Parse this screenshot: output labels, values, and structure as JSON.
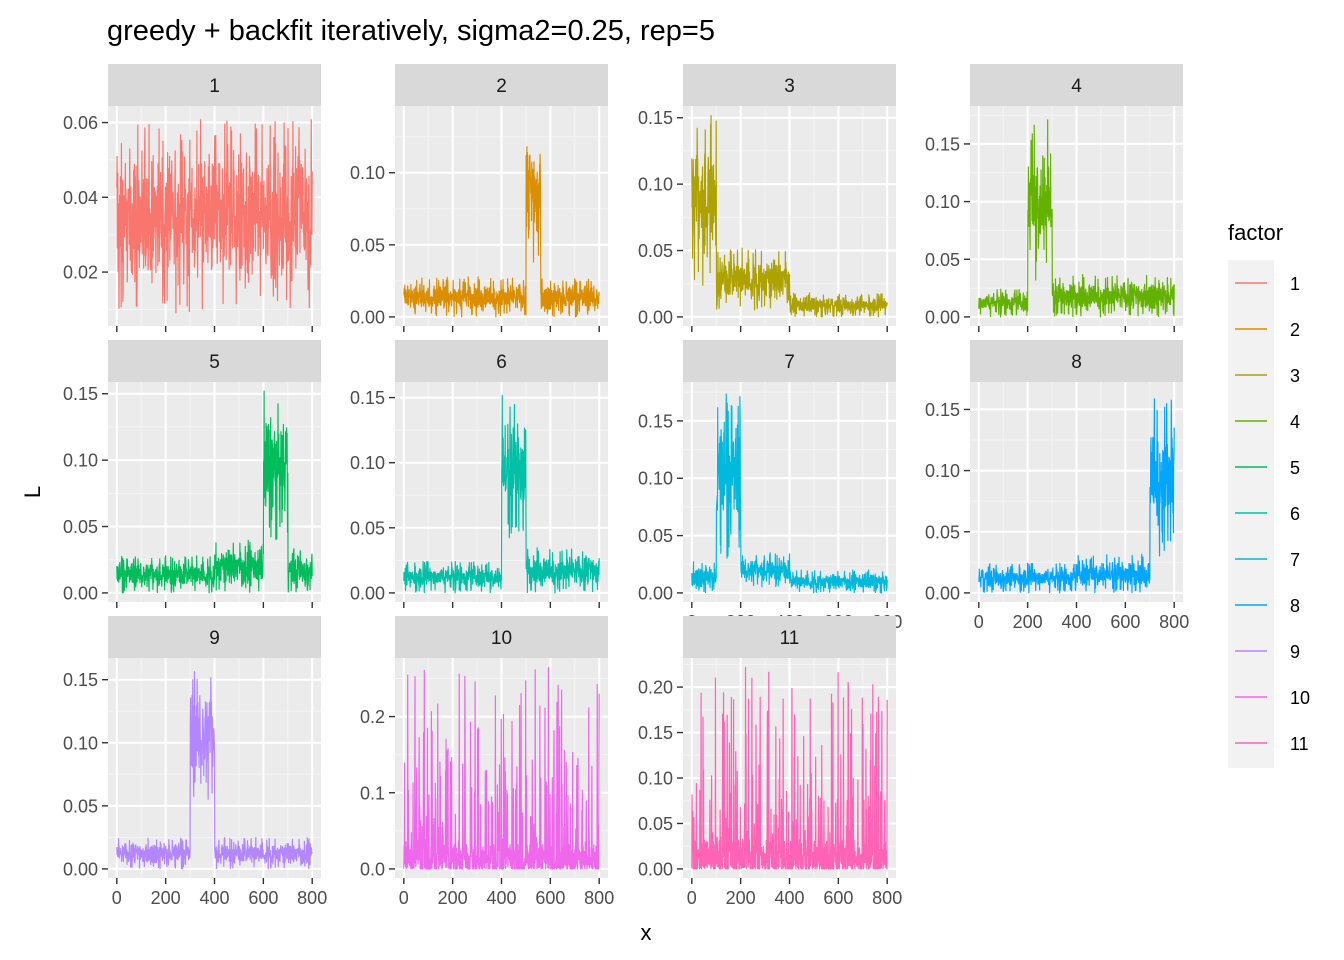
{
  "chart_data": {
    "type": "line",
    "title": "greedy + backfit iteratively, sigma2=0.25, rep=5",
    "xlabel": "x",
    "ylabel": "L",
    "xlim": [
      0,
      800
    ],
    "x_ticks": [
      0,
      200,
      400,
      600,
      800
    ],
    "grid": true,
    "legend": {
      "title": "factor",
      "position": "right"
    },
    "panels": [
      {
        "label": "1",
        "color": "#F8766D",
        "ylim": [
          0.008,
          0.062
        ],
        "y_ticks": [
          0.02,
          0.04,
          0.06
        ],
        "tick_labels": [
          "0.02",
          "0.04",
          "0.06"
        ],
        "segments": [
          {
            "x": [
              0,
              800
            ],
            "min": 0.009,
            "max": 0.061,
            "mean": 0.033
          }
        ]
      },
      {
        "label": "2",
        "color": "#DB8E00",
        "ylim": [
          0.0,
          0.14
        ],
        "y_ticks": [
          0.0,
          0.05,
          0.1
        ],
        "tick_labels": [
          "0.00",
          "0.05",
          "0.10"
        ],
        "segments": [
          {
            "x": [
              0,
              500
            ],
            "min": 0.0,
            "max": 0.028,
            "mean": 0.008
          },
          {
            "x": [
              500,
              560
            ],
            "min": 0.035,
            "max": 0.137,
            "mean": 0.09
          },
          {
            "x": [
              560,
              800
            ],
            "min": 0.0,
            "max": 0.027,
            "mean": 0.012
          }
        ]
      },
      {
        "label": "3",
        "color": "#AEA200",
        "ylim": [
          0.0,
          0.152
        ],
        "y_ticks": [
          0.0,
          0.05,
          0.1,
          0.15
        ],
        "tick_labels": [
          "0.00",
          "0.05",
          "0.10",
          "0.15"
        ],
        "segments": [
          {
            "x": [
              0,
              100
            ],
            "min": 0.022,
            "max": 0.152,
            "mean": 0.09
          },
          {
            "x": [
              100,
              400
            ],
            "min": 0.005,
            "max": 0.052,
            "mean": 0.025
          },
          {
            "x": [
              400,
              800
            ],
            "min": 0.0,
            "max": 0.018,
            "mean": 0.007
          }
        ]
      },
      {
        "label": "4",
        "color": "#64B200",
        "ylim": [
          0.0,
          0.175
        ],
        "y_ticks": [
          0.0,
          0.05,
          0.1,
          0.15
        ],
        "tick_labels": [
          "0.00",
          "0.05",
          "0.10",
          "0.15"
        ],
        "segments": [
          {
            "x": [
              0,
              200
            ],
            "min": 0.0,
            "max": 0.025,
            "mean": 0.01
          },
          {
            "x": [
              200,
              300
            ],
            "min": 0.03,
            "max": 0.175,
            "mean": 0.1
          },
          {
            "x": [
              300,
              800
            ],
            "min": 0.0,
            "max": 0.037,
            "mean": 0.008
          }
        ]
      },
      {
        "label": "5",
        "color": "#00BD5C",
        "ylim": [
          0.0,
          0.152
        ],
        "y_ticks": [
          0.0,
          0.05,
          0.1,
          0.15
        ],
        "tick_labels": [
          "0.00",
          "0.05",
          "0.10",
          "0.15"
        ],
        "segments": [
          {
            "x": [
              0,
              400
            ],
            "min": 0.0,
            "max": 0.028,
            "mean": 0.01
          },
          {
            "x": [
              400,
              600
            ],
            "min": 0.0,
            "max": 0.04,
            "mean": 0.02
          },
          {
            "x": [
              600,
              700
            ],
            "min": 0.04,
            "max": 0.152,
            "mean": 0.1
          },
          {
            "x": [
              700,
              800
            ],
            "min": 0.0,
            "max": 0.035,
            "mean": 0.015
          }
        ]
      },
      {
        "label": "6",
        "color": "#00C1A7",
        "ylim": [
          0.0,
          0.155
        ],
        "y_ticks": [
          0.0,
          0.05,
          0.1,
          0.15
        ],
        "tick_labels": [
          "0.00",
          "0.05",
          "0.10",
          "0.15"
        ],
        "segments": [
          {
            "x": [
              0,
              400
            ],
            "min": 0.0,
            "max": 0.025,
            "mean": 0.01
          },
          {
            "x": [
              400,
              500
            ],
            "min": 0.04,
            "max": 0.155,
            "mean": 0.1
          },
          {
            "x": [
              500,
              800
            ],
            "min": 0.0,
            "max": 0.035,
            "mean": 0.015
          }
        ]
      },
      {
        "label": "7",
        "color": "#00BADE",
        "ylim": [
          0.0,
          0.176
        ],
        "y_ticks": [
          0.0,
          0.05,
          0.1,
          0.15
        ],
        "tick_labels": [
          "0.00",
          "0.05",
          "0.10",
          "0.15"
        ],
        "segments": [
          {
            "x": [
              0,
              100
            ],
            "min": 0.0,
            "max": 0.028,
            "mean": 0.012
          },
          {
            "x": [
              100,
              200
            ],
            "min": 0.03,
            "max": 0.176,
            "mean": 0.1
          },
          {
            "x": [
              200,
              400
            ],
            "min": 0.005,
            "max": 0.035,
            "mean": 0.018
          },
          {
            "x": [
              400,
              800
            ],
            "min": 0.0,
            "max": 0.02,
            "mean": 0.007
          }
        ]
      },
      {
        "label": "8",
        "color": "#00A6FF",
        "ylim": [
          0.0,
          0.165
        ],
        "y_ticks": [
          0.0,
          0.05,
          0.1,
          0.15
        ],
        "tick_labels": [
          "0.00",
          "0.05",
          "0.10",
          "0.15"
        ],
        "segments": [
          {
            "x": [
              0,
              400
            ],
            "min": 0.0,
            "max": 0.025,
            "mean": 0.008
          },
          {
            "x": [
              400,
              700
            ],
            "min": 0.0,
            "max": 0.032,
            "mean": 0.015
          },
          {
            "x": [
              700,
              800
            ],
            "min": 0.03,
            "max": 0.165,
            "mean": 0.1
          }
        ]
      },
      {
        "label": "9",
        "color": "#B385FF",
        "ylim": [
          0.0,
          0.16
        ],
        "y_ticks": [
          0.0,
          0.05,
          0.1,
          0.15
        ],
        "tick_labels": [
          "0.00",
          "0.05",
          "0.10",
          "0.15"
        ],
        "segments": [
          {
            "x": [
              0,
              300
            ],
            "min": 0.0,
            "max": 0.025,
            "mean": 0.01
          },
          {
            "x": [
              300,
              400
            ],
            "min": 0.05,
            "max": 0.16,
            "mean": 0.11
          },
          {
            "x": [
              400,
              800
            ],
            "min": 0.0,
            "max": 0.025,
            "mean": 0.008
          }
        ]
      },
      {
        "label": "10",
        "color": "#EF67EB",
        "ylim": [
          0.0,
          0.265
        ],
        "y_ticks": [
          0.0,
          0.1,
          0.2
        ],
        "tick_labels": [
          "0.0",
          "0.1",
          "0.2"
        ],
        "segments": [
          {
            "x": [
              0,
              800
            ],
            "min": 0.0,
            "max": 0.265,
            "mean": 0.02
          }
        ]
      },
      {
        "label": "11",
        "color": "#FF63B6",
        "ylim": [
          0.0,
          0.222
        ],
        "y_ticks": [
          0.0,
          0.05,
          0.1,
          0.15,
          0.2
        ],
        "tick_labels": [
          "0.00",
          "0.05",
          "0.10",
          "0.15",
          "0.20"
        ],
        "segments": [
          {
            "x": [
              0,
              800
            ],
            "min": 0.0,
            "max": 0.222,
            "mean": 0.02
          }
        ]
      }
    ]
  }
}
